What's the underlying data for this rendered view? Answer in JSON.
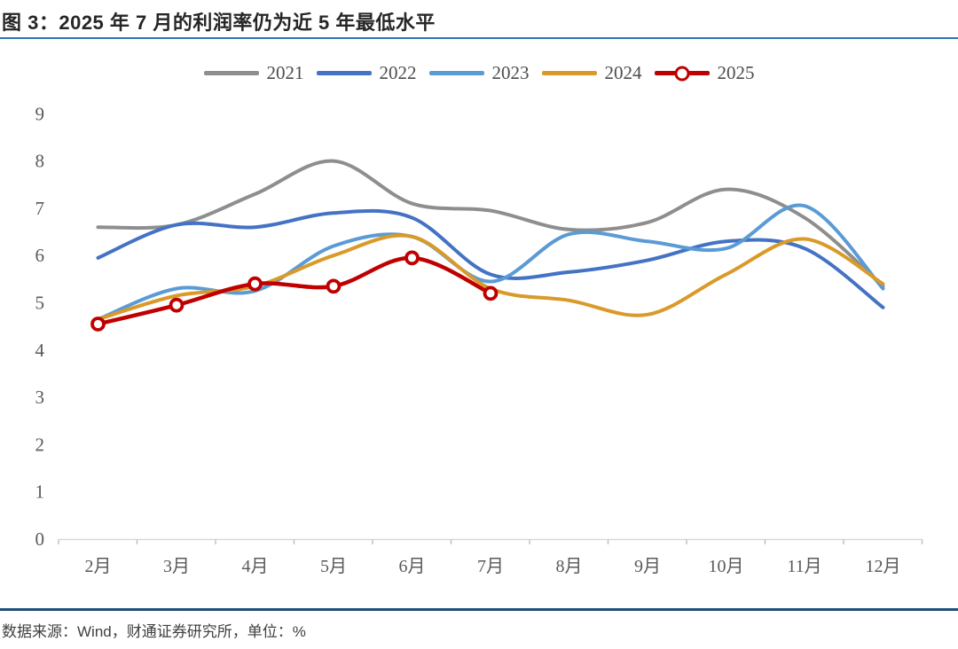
{
  "title": "图 3：2025 年 7 月的利润率仍为近 5 年最低水平",
  "footer": {
    "source": "数据来源：Wind，财通证券研究所，单位：%"
  },
  "colors": {
    "title_underline": "#2E74B5",
    "footer_divider": "#1F4E79",
    "axis_line": "#D9D9D9",
    "tick_mark": "#BFBFBF",
    "tick_text": "#595959",
    "series_2021": "#8E8E8E",
    "series_2022": "#4472C4",
    "series_2023": "#5B9BD5",
    "series_2024": "#DA9A29",
    "series_2025": "#C00000"
  },
  "chart_data": {
    "type": "line",
    "title": "图 3：2025 年 7 月的利润率仍为近 5 年最低水平",
    "unit": "%",
    "categories": [
      "2月",
      "3月",
      "4月",
      "5月",
      "6月",
      "7月",
      "8月",
      "9月",
      "10月",
      "11月",
      "12月"
    ],
    "series": [
      {
        "name": "2021",
        "color": "#8E8E8E",
        "marker": "none",
        "values": [
          6.6,
          6.65,
          7.3,
          8.0,
          7.1,
          6.95,
          6.55,
          6.7,
          7.4,
          6.8,
          5.35
        ]
      },
      {
        "name": "2022",
        "color": "#4472C4",
        "marker": "none",
        "values": [
          5.95,
          6.65,
          6.6,
          6.9,
          6.8,
          5.6,
          5.65,
          5.9,
          6.3,
          6.15,
          4.9
        ]
      },
      {
        "name": "2023",
        "color": "#5B9BD5",
        "marker": "none",
        "values": [
          4.65,
          5.3,
          5.25,
          6.2,
          6.4,
          5.45,
          6.45,
          6.3,
          6.15,
          7.05,
          5.3
        ]
      },
      {
        "name": "2024",
        "color": "#DA9A29",
        "marker": "none",
        "values": [
          4.65,
          5.15,
          5.35,
          6.0,
          6.4,
          5.3,
          5.05,
          4.75,
          5.6,
          6.35,
          5.4
        ]
      },
      {
        "name": "2025",
        "color": "#C00000",
        "marker": "circle",
        "values": [
          4.55,
          4.95,
          5.4,
          5.35,
          5.95,
          5.2
        ]
      }
    ],
    "ylim": [
      0,
      9
    ],
    "yticks": [
      0,
      1,
      2,
      3,
      4,
      5,
      6,
      7,
      8,
      9
    ],
    "grid": false,
    "legend_position": "top",
    "smooth": true
  }
}
